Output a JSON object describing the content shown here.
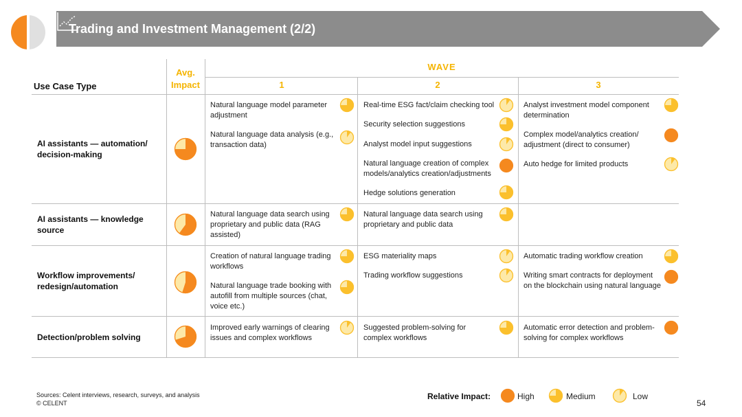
{
  "header": {
    "title": "Trading and Investment Management (2/2)",
    "icon": "trend-chart-icon"
  },
  "colors": {
    "orange": "#f5891f",
    "yellow": "#fbc02d",
    "pale": "#fde9a8",
    "banner": "#8c8c8c",
    "accent": "#f5b400"
  },
  "table": {
    "use_case_header": "Use Case Type",
    "avg_header": "Avg. Impact",
    "wave_header": "WAVE",
    "wave_cols": [
      "1",
      "2",
      "3"
    ],
    "rows": [
      {
        "label": "AI assistants — automation/ decision-making",
        "avg": 0.75,
        "wave1": [
          {
            "text": "Natural language model parameter adjustment",
            "impact": 0.75
          },
          {
            "text": "Natural language data analysis (e.g., transaction data)",
            "impact": 0.1
          }
        ],
        "wave2": [
          {
            "text": "Real-time ESG fact/claim checking tool",
            "impact": 0.1
          },
          {
            "text": "Security selection suggestions",
            "impact": 0.75
          },
          {
            "text": "Analyst model input suggestions",
            "impact": 0.1
          },
          {
            "text": "Natural language creation of complex models/analytics creation/adjustments",
            "impact": 1
          },
          {
            "text": "Hedge solutions generation",
            "impact": 0.75
          }
        ],
        "wave3": [
          {
            "text": "Analyst investment model component determination",
            "impact": 0.75
          },
          {
            "text": "Complex model/analytics creation/ adjustment (direct to consumer)",
            "impact": 1
          },
          {
            "text": "Auto hedge for limited products",
            "impact": 0.1
          }
        ]
      },
      {
        "label": "AI assistants — knowledge source",
        "avg": 0.6,
        "wave1": [
          {
            "text": "Natural language data search using proprietary and public data (RAG assisted)",
            "impact": 0.75
          }
        ],
        "wave2": [
          {
            "text": "Natural language data search using proprietary and public data",
            "impact": 0.75
          }
        ],
        "wave3": []
      },
      {
        "label": "Workflow improvements/ redesign/automation",
        "avg": 0.55,
        "wave1": [
          {
            "text": "Creation of natural language trading workflows",
            "impact": 0.75
          },
          {
            "text": "Natural language trade booking with autofill from multiple sources (chat, voice etc.)",
            "impact": 0.75
          }
        ],
        "wave2": [
          {
            "text": "ESG materiality maps",
            "impact": 0.1
          },
          {
            "text": "Trading workflow suggestions",
            "impact": 0.1
          }
        ],
        "wave3": [
          {
            "text": "Automatic trading workflow creation",
            "impact": 0.75
          },
          {
            "text": "Writing smart contracts for deployment on the blockchain using natural language",
            "impact": 1
          }
        ]
      },
      {
        "label": "Detection/problem solving",
        "avg": 0.7,
        "wave1": [
          {
            "text": "Improved early warnings of clearing issues and complex workflows",
            "impact": 0.1
          }
        ],
        "wave2": [
          {
            "text": "Suggested problem-solving for complex workflows",
            "impact": 0.75
          }
        ],
        "wave3": [
          {
            "text": "Automatic error detection and problem-solving for complex workflows",
            "impact": 1
          }
        ]
      }
    ]
  },
  "footer": {
    "sources": "Sources: Celent interviews, research, surveys, and analysis",
    "copyright": "© CELENT",
    "legend_title": "Relative Impact:",
    "legend": [
      {
        "label": "High",
        "impact": 1
      },
      {
        "label": "Medium",
        "impact": 0.75
      },
      {
        "label": "Low",
        "impact": 0.1
      }
    ],
    "page_number": "54"
  }
}
